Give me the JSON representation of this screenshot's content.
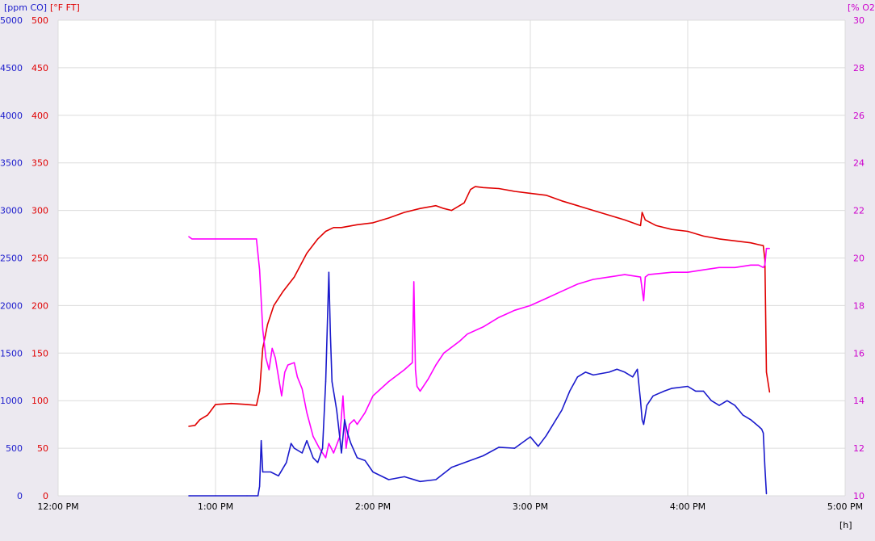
{
  "chart_data": {
    "type": "line",
    "axes": {
      "left_co": {
        "unit_label": "[ppm CO]",
        "min": 0,
        "max": 5000,
        "ticks": [
          0,
          500,
          1000,
          1500,
          2000,
          2500,
          3000,
          3500,
          4000,
          4500,
          5000
        ],
        "color": "#1a1acc"
      },
      "left_temp": {
        "unit_label": "[°F FT]",
        "min": 0,
        "max": 500,
        "ticks": [
          0,
          50,
          100,
          150,
          200,
          250,
          300,
          350,
          400,
          450,
          500
        ],
        "color": "#e00000"
      },
      "right_o2": {
        "unit_label": "[% O2]",
        "min": 10,
        "max": 30,
        "ticks": [
          10,
          12,
          14,
          16,
          18,
          20,
          22,
          24,
          26,
          28,
          30
        ],
        "color": "#cc00cc"
      },
      "x": {
        "unit_label": "[h]",
        "min": 0,
        "max": 5,
        "ticks": [
          0,
          1,
          2,
          3,
          4,
          5
        ],
        "tick_labels": [
          "12:00 PM",
          "1:00 PM",
          "2:00 PM",
          "3:00 PM",
          "4:00 PM",
          "5:00 PM"
        ]
      }
    },
    "grid": true,
    "series": [
      {
        "axis": "left_temp",
        "color": "#e00000",
        "x": [
          0.83,
          0.87,
          0.9,
          0.95,
          1.0,
          1.1,
          1.2,
          1.26,
          1.28,
          1.3,
          1.33,
          1.37,
          1.43,
          1.5,
          1.58,
          1.65,
          1.7,
          1.75,
          1.8,
          1.9,
          2.0,
          2.1,
          2.2,
          2.3,
          2.4,
          2.45,
          2.5,
          2.58,
          2.62,
          2.65,
          2.7,
          2.8,
          2.9,
          3.0,
          3.1,
          3.2,
          3.3,
          3.4,
          3.5,
          3.6,
          3.7,
          3.71,
          3.73,
          3.8,
          3.9,
          4.0,
          4.1,
          4.2,
          4.3,
          4.4,
          4.45,
          4.48,
          4.49,
          4.5,
          4.52
        ],
        "values": [
          73,
          74,
          80,
          85,
          96,
          97,
          96,
          95,
          110,
          155,
          180,
          200,
          215,
          230,
          255,
          270,
          278,
          282,
          282,
          285,
          287,
          292,
          298,
          302,
          305,
          302,
          300,
          308,
          322,
          325,
          324,
          323,
          320,
          318,
          316,
          310,
          305,
          300,
          295,
          290,
          284,
          298,
          290,
          284,
          280,
          278,
          273,
          270,
          268,
          266,
          264,
          263,
          248,
          130,
          109
        ]
      },
      {
        "axis": "right_o2",
        "color": "#ff00ff",
        "x": [
          0.83,
          0.85,
          1.0,
          1.2,
          1.26,
          1.28,
          1.3,
          1.32,
          1.34,
          1.36,
          1.38,
          1.42,
          1.44,
          1.46,
          1.5,
          1.52,
          1.55,
          1.58,
          1.62,
          1.66,
          1.7,
          1.72,
          1.75,
          1.79,
          1.81,
          1.83,
          1.85,
          1.88,
          1.9,
          1.95,
          2.0,
          2.1,
          2.2,
          2.25,
          2.26,
          2.27,
          2.28,
          2.3,
          2.35,
          2.4,
          2.45,
          2.55,
          2.6,
          2.7,
          2.8,
          2.9,
          3.0,
          3.1,
          3.2,
          3.3,
          3.4,
          3.5,
          3.6,
          3.7,
          3.72,
          3.73,
          3.75,
          3.9,
          4.0,
          4.1,
          4.2,
          4.3,
          4.4,
          4.45,
          4.48,
          4.49,
          4.5,
          4.52
        ],
        "values": [
          20.9,
          20.8,
          20.8,
          20.8,
          20.8,
          19.5,
          17,
          15.8,
          15.3,
          16.2,
          15.8,
          14.2,
          15.2,
          15.5,
          15.6,
          15.0,
          14.5,
          13.5,
          12.5,
          12.0,
          11.6,
          12.2,
          11.8,
          12.5,
          14.2,
          12.0,
          13.0,
          13.2,
          13.0,
          13.5,
          14.2,
          14.8,
          15.3,
          15.6,
          19.0,
          15.3,
          14.6,
          14.4,
          14.9,
          15.5,
          16.0,
          16.5,
          16.8,
          17.1,
          17.5,
          17.8,
          18.0,
          18.3,
          18.6,
          18.9,
          19.1,
          19.2,
          19.3,
          19.2,
          18.2,
          19.2,
          19.3,
          19.4,
          19.4,
          19.5,
          19.6,
          19.6,
          19.7,
          19.7,
          19.6,
          19.7,
          20.4,
          20.4
        ]
      },
      {
        "axis": "left_co",
        "color": "#1a1acc",
        "x": [
          0.83,
          0.84,
          1.0,
          1.2,
          1.27,
          1.28,
          1.29,
          1.3,
          1.35,
          1.4,
          1.45,
          1.48,
          1.5,
          1.55,
          1.58,
          1.62,
          1.65,
          1.68,
          1.7,
          1.72,
          1.73,
          1.74,
          1.76,
          1.77,
          1.79,
          1.8,
          1.82,
          1.84,
          1.86,
          1.9,
          1.95,
          2.0,
          2.1,
          2.2,
          2.3,
          2.4,
          2.5,
          2.6,
          2.7,
          2.8,
          2.9,
          3.0,
          3.05,
          3.1,
          3.2,
          3.25,
          3.3,
          3.35,
          3.4,
          3.5,
          3.55,
          3.6,
          3.65,
          3.68,
          3.7,
          3.71,
          3.72,
          3.74,
          3.78,
          3.85,
          3.9,
          4.0,
          4.05,
          4.1,
          4.15,
          4.2,
          4.25,
          4.3,
          4.35,
          4.4,
          4.45,
          4.47,
          4.48,
          4.49,
          4.5
        ],
        "values": [
          0,
          0,
          0,
          0,
          0,
          100,
          580,
          250,
          250,
          210,
          350,
          550,
          500,
          450,
          580,
          400,
          350,
          500,
          1200,
          2350,
          1700,
          1200,
          1000,
          900,
          600,
          450,
          800,
          650,
          550,
          400,
          370,
          250,
          170,
          200,
          150,
          170,
          300,
          360,
          420,
          510,
          500,
          620,
          520,
          630,
          900,
          1100,
          1250,
          1300,
          1270,
          1300,
          1330,
          1300,
          1250,
          1330,
          1000,
          800,
          750,
          950,
          1050,
          1100,
          1130,
          1150,
          1100,
          1100,
          1000,
          950,
          1000,
          950,
          850,
          800,
          730,
          700,
          660,
          300,
          20
        ]
      }
    ]
  }
}
